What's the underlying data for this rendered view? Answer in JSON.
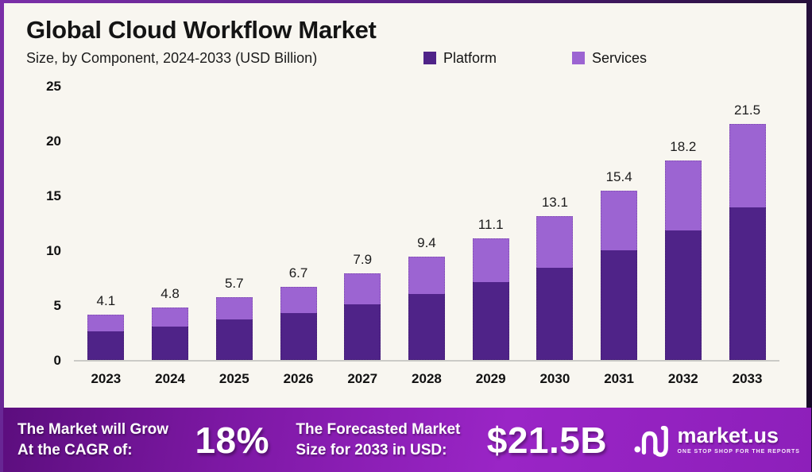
{
  "header": {
    "title": "Global Cloud Workflow Market",
    "subtitle": "Size, by Component, 2024-2033 (USD Billion)"
  },
  "legend": {
    "platform_label": "Platform",
    "services_label": "Services"
  },
  "colors": {
    "platform": "#4f2388",
    "services": "#9c64d2",
    "chart_background": "#f8f6f0",
    "banner_gradient_start": "#5c0e7e",
    "banner_gradient_end": "#9a25c6",
    "axis_text": "#111111"
  },
  "chart_data": {
    "type": "bar",
    "stacked": true,
    "title": "Global Cloud Workflow Market",
    "subtitle": "Size, by Component, 2024-2033 (USD Billion)",
    "xlabel": "",
    "ylabel": "USD Billion",
    "ylim": [
      0,
      25
    ],
    "yticks": [
      0,
      5,
      10,
      15,
      20,
      25
    ],
    "grid": false,
    "legend_position": "top",
    "categories": [
      "2023",
      "2024",
      "2025",
      "2026",
      "2027",
      "2028",
      "2029",
      "2030",
      "2031",
      "2032",
      "2033"
    ],
    "series": [
      {
        "name": "Platform",
        "color": "#4f2388",
        "values": [
          2.6,
          3.1,
          3.7,
          4.3,
          5.1,
          6.0,
          7.1,
          8.4,
          10.0,
          11.8,
          13.9
        ]
      },
      {
        "name": "Services",
        "color": "#9c64d2",
        "values": [
          1.5,
          1.7,
          2.0,
          2.4,
          2.8,
          3.4,
          4.0,
          4.7,
          5.4,
          6.4,
          7.6
        ]
      }
    ],
    "totals": [
      "4.1",
      "4.8",
      "5.7",
      "6.7",
      "7.9",
      "9.4",
      "11.1",
      "13.1",
      "15.4",
      "18.2",
      "21.5"
    ]
  },
  "banner": {
    "cagr_line1": "The Market will Grow",
    "cagr_line2": "At the CAGR of:",
    "cagr_value": "18%",
    "forecast_line1": "The Forecasted Market",
    "forecast_line2": "Size for 2033 in USD:",
    "forecast_value": "$21.5B",
    "logo_text": "market.us",
    "logo_tagline": "ONE STOP SHOP FOR THE REPORTS"
  }
}
